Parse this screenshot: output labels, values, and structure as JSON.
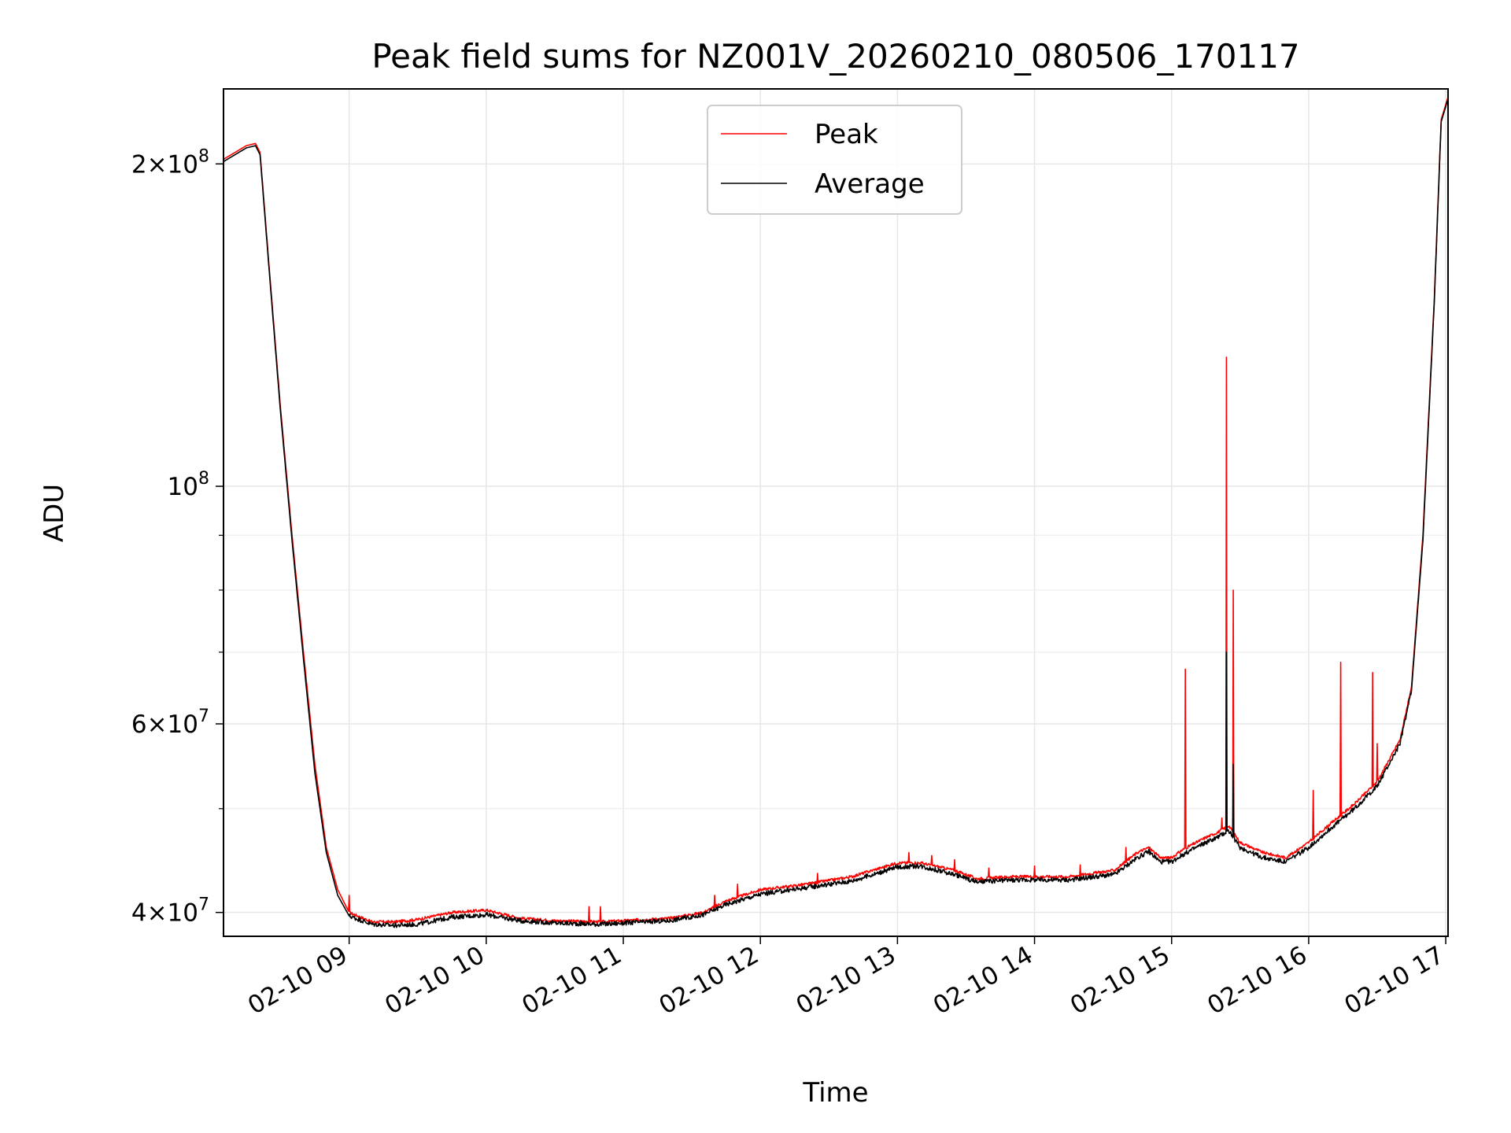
{
  "chart_data": {
    "type": "line",
    "title": "Peak field sums for NZ001V_20260210_080506_170117",
    "xlabel": "Time",
    "ylabel": "ADU",
    "y_scale": "log",
    "xlim": [
      "2026-02-10 08:05",
      "2026-02-10 17:01"
    ],
    "ylim": [
      38000000,
      235000000
    ],
    "grid": true,
    "legend": {
      "placement": "top-center",
      "entries": [
        "Peak",
        "Average"
      ]
    },
    "x_ticks": [
      "02-10 09",
      "02-10 10",
      "02-10 11",
      "02-10 12",
      "02-10 13",
      "02-10 14",
      "02-10 15",
      "02-10 16",
      "02-10 17"
    ],
    "y_ticks_major": [
      {
        "value": 40000000,
        "mantissa": "4",
        "exp": "7"
      },
      {
        "value": 60000000,
        "mantissa": "6",
        "exp": "7"
      },
      {
        "value": 100000000,
        "mantissa": "",
        "exp": "8"
      },
      {
        "value": 200000000,
        "mantissa": "2",
        "exp": "8"
      }
    ],
    "y_ticks_minor": [
      50000000,
      70000000,
      80000000,
      90000000
    ],
    "series": [
      {
        "name": "Peak",
        "color": "#ff0000",
        "points": [
          [
            "08:05",
            202000000
          ],
          [
            "08:15",
            208000000
          ],
          [
            "08:19",
            209000000
          ],
          [
            "08:21",
            205000000
          ],
          [
            "08:25",
            160000000
          ],
          [
            "08:30",
            118000000
          ],
          [
            "08:35",
            90000000
          ],
          [
            "08:40",
            70000000
          ],
          [
            "08:45",
            55000000
          ],
          [
            "08:50",
            46000000
          ],
          [
            "08:55",
            42000000
          ],
          [
            "09:00",
            40000000
          ],
          [
            "09:10",
            39200000
          ],
          [
            "09:20",
            39200000
          ],
          [
            "09:30",
            39400000
          ],
          [
            "09:45",
            40000000
          ],
          [
            "10:00",
            40200000
          ],
          [
            "10:15",
            39500000
          ],
          [
            "10:30",
            39300000
          ],
          [
            "10:50",
            39200000
          ],
          [
            "11:00",
            39300000
          ],
          [
            "11:20",
            39500000
          ],
          [
            "11:35",
            40000000
          ],
          [
            "11:45",
            41000000
          ],
          [
            "12:00",
            42000000
          ],
          [
            "12:20",
            42500000
          ],
          [
            "12:40",
            43200000
          ],
          [
            "13:00",
            44500000
          ],
          [
            "13:10",
            44500000
          ],
          [
            "13:25",
            43800000
          ],
          [
            "13:35",
            43000000
          ],
          [
            "13:50",
            43200000
          ],
          [
            "14:15",
            43200000
          ],
          [
            "14:35",
            43800000
          ],
          [
            "14:45",
            45500000
          ],
          [
            "14:50",
            46000000
          ],
          [
            "14:55",
            45000000
          ],
          [
            "15:00",
            45000000
          ],
          [
            "15:05",
            45800000
          ],
          [
            "15:15",
            47000000
          ],
          [
            "15:20",
            47500000
          ],
          [
            "15:25",
            48200000
          ],
          [
            "15:30",
            46500000
          ],
          [
            "15:40",
            45500000
          ],
          [
            "15:50",
            45000000
          ],
          [
            "16:00",
            46500000
          ],
          [
            "16:10",
            48500000
          ],
          [
            "16:20",
            50500000
          ],
          [
            "16:30",
            53000000
          ],
          [
            "16:40",
            58000000
          ],
          [
            "16:45",
            65000000
          ],
          [
            "16:50",
            90000000
          ],
          [
            "16:55",
            150000000
          ],
          [
            "16:58",
            220000000
          ],
          [
            "17:01",
            231000000
          ]
        ],
        "spikes": [
          [
            "09:00",
            41500000
          ],
          [
            "10:45",
            40500000
          ],
          [
            "10:50",
            40500000
          ],
          [
            "11:40",
            41500000
          ],
          [
            "11:50",
            42500000
          ],
          [
            "12:25",
            43500000
          ],
          [
            "12:50",
            43800000
          ],
          [
            "13:05",
            45500000
          ],
          [
            "13:15",
            45200000
          ],
          [
            "13:25",
            44800000
          ],
          [
            "13:40",
            44000000
          ],
          [
            "14:00",
            44200000
          ],
          [
            "14:20",
            44300000
          ],
          [
            "14:40",
            46000000
          ],
          [
            "15:06",
            67500000
          ],
          [
            "15:22",
            49000000
          ],
          [
            "15:24",
            132000000
          ],
          [
            "15:27",
            80000000
          ],
          [
            "16:02",
            52000000
          ],
          [
            "16:14",
            68500000
          ],
          [
            "16:28",
            67000000
          ],
          [
            "16:30",
            57500000
          ]
        ]
      },
      {
        "name": "Average",
        "color": "#000000",
        "points": [
          [
            "08:05",
            201000000
          ],
          [
            "08:15",
            207000000
          ],
          [
            "08:19",
            208000000
          ],
          [
            "08:21",
            204000000
          ],
          [
            "08:25",
            159000000
          ],
          [
            "08:30",
            117000000
          ],
          [
            "08:35",
            89000000
          ],
          [
            "08:40",
            69000000
          ],
          [
            "08:45",
            54000000
          ],
          [
            "08:50",
            45500000
          ],
          [
            "08:55",
            41500000
          ],
          [
            "09:00",
            39700000
          ],
          [
            "09:10",
            39000000
          ],
          [
            "09:20",
            38900000
          ],
          [
            "09:30",
            39000000
          ],
          [
            "09:45",
            39600000
          ],
          [
            "10:00",
            39800000
          ],
          [
            "10:15",
            39300000
          ],
          [
            "10:30",
            39100000
          ],
          [
            "10:50",
            39000000
          ],
          [
            "11:00",
            39100000
          ],
          [
            "11:20",
            39300000
          ],
          [
            "11:35",
            39800000
          ],
          [
            "11:45",
            40700000
          ],
          [
            "12:00",
            41600000
          ],
          [
            "12:20",
            42200000
          ],
          [
            "12:40",
            42800000
          ],
          [
            "13:00",
            44100000
          ],
          [
            "13:10",
            44200000
          ],
          [
            "13:25",
            43400000
          ],
          [
            "13:35",
            42700000
          ],
          [
            "13:50",
            42900000
          ],
          [
            "14:15",
            42900000
          ],
          [
            "14:35",
            43400000
          ],
          [
            "14:45",
            45000000
          ],
          [
            "14:50",
            45600000
          ],
          [
            "14:55",
            44600000
          ],
          [
            "15:00",
            44600000
          ],
          [
            "15:05",
            45300000
          ],
          [
            "15:15",
            46500000
          ],
          [
            "15:20",
            47000000
          ],
          [
            "15:25",
            47700000
          ],
          [
            "15:30",
            46000000
          ],
          [
            "15:40",
            45000000
          ],
          [
            "15:50",
            44600000
          ],
          [
            "16:00",
            46000000
          ],
          [
            "16:10",
            48000000
          ],
          [
            "16:20",
            50000000
          ],
          [
            "16:30",
            52500000
          ],
          [
            "16:40",
            57500000
          ],
          [
            "16:45",
            64500000
          ],
          [
            "16:50",
            89000000
          ],
          [
            "16:55",
            149000000
          ],
          [
            "16:58",
            219000000
          ],
          [
            "17:01",
            230000000
          ]
        ],
        "spikes": [
          [
            "15:24",
            70000000
          ],
          [
            "15:27",
            55000000
          ]
        ]
      }
    ]
  }
}
